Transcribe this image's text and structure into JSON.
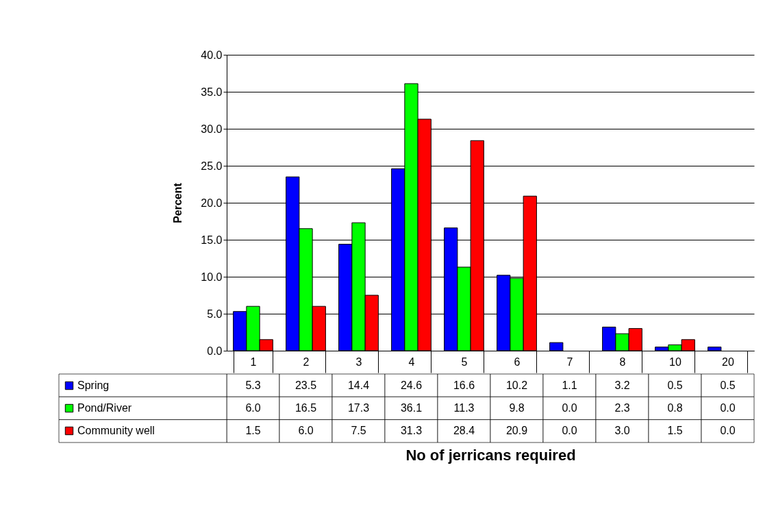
{
  "chart_data": {
    "type": "bar",
    "annotations": [
      "No of jerricans required"
    ],
    "ylabel": "Percent",
    "categories": [
      "1",
      "2",
      "3",
      "4",
      "5",
      "6",
      "7",
      "8",
      "10",
      "20"
    ],
    "series": [
      {
        "name": "Spring",
        "color": "#0000ff",
        "values": [
          5.3,
          23.5,
          14.4,
          24.6,
          16.6,
          10.2,
          1.1,
          3.2,
          0.5,
          0.5
        ],
        "value_labels": [
          "5.3",
          "23.5",
          "14.4",
          "24.6",
          "16.6",
          "10.2",
          "1.1",
          "3.2",
          "0.5",
          "0.5"
        ]
      },
      {
        "name": "Pond/River",
        "color": "#00ff00",
        "values": [
          6.0,
          16.5,
          17.3,
          36.1,
          11.3,
          9.8,
          0.0,
          2.3,
          0.8,
          0.0
        ],
        "value_labels": [
          "6.0",
          "16.5",
          "17.3",
          "36.1",
          "11.3",
          "9.8",
          "0.0",
          "2.3",
          "0.8",
          "0.0"
        ]
      },
      {
        "name": "Community well",
        "color": "#ff0000",
        "values": [
          1.5,
          6.0,
          7.5,
          31.3,
          28.4,
          20.9,
          0.0,
          3.0,
          1.5,
          0.0
        ],
        "value_labels": [
          "1.5",
          "6.0",
          "7.5",
          "31.3",
          "28.4",
          "20.9",
          "0.0",
          "3.0",
          "1.5",
          "0.0"
        ]
      }
    ],
    "ylim": [
      0,
      40
    ],
    "yticks": [
      {
        "value": 0,
        "label": "0.0"
      },
      {
        "value": 5,
        "label": "5.0"
      },
      {
        "value": 10,
        "label": "10.0"
      },
      {
        "value": 15,
        "label": "15.0"
      },
      {
        "value": 20,
        "label": "20.0"
      },
      {
        "value": 25,
        "label": "25.0"
      },
      {
        "value": 30,
        "label": "30.0"
      },
      {
        "value": 35,
        "label": "35.0"
      },
      {
        "value": 40,
        "label": "40.0"
      }
    ],
    "grid": "y",
    "legend": "bottom left"
  }
}
